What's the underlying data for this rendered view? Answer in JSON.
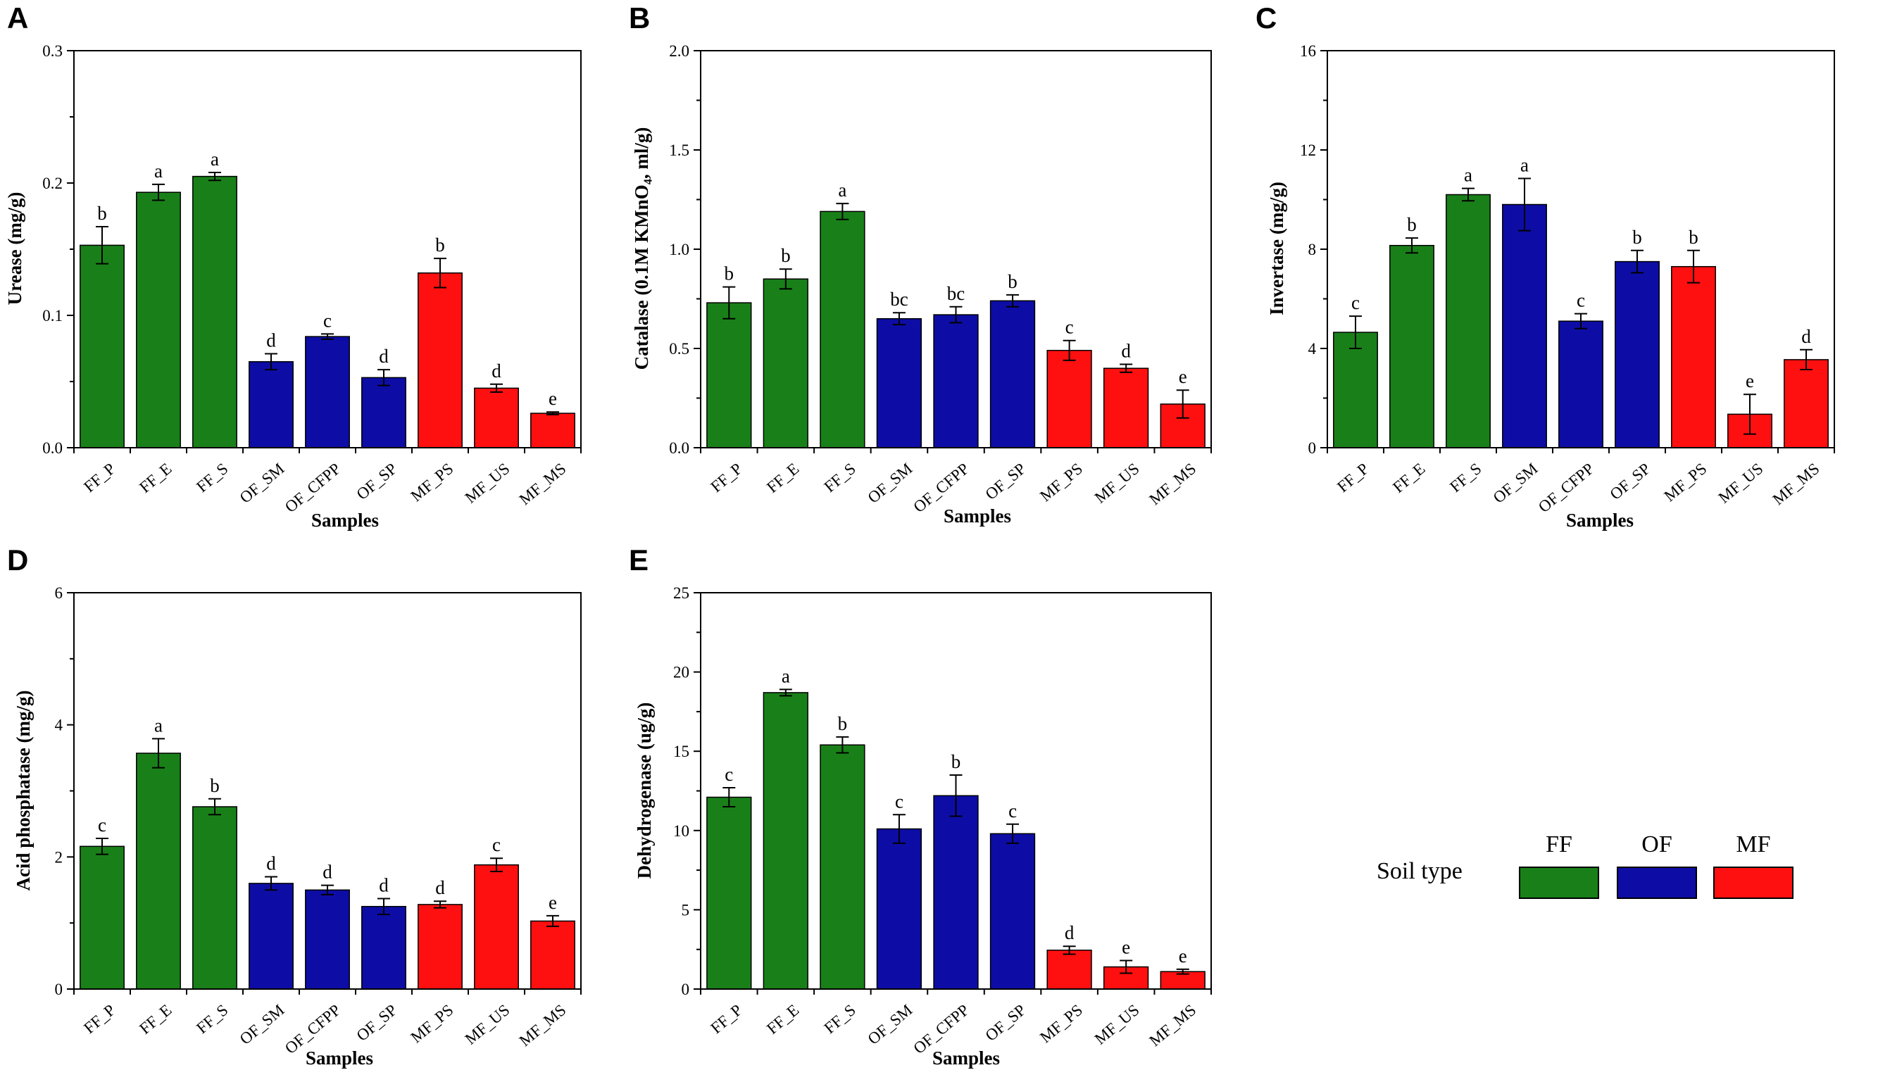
{
  "colors": {
    "FF": "#198019",
    "OF": "#0d0da6",
    "MF": "#ff1010"
  },
  "legend": {
    "title": "Soil type",
    "entries": [
      {
        "key": "FF",
        "label": "FF"
      },
      {
        "key": "OF",
        "label": "OF"
      },
      {
        "key": "MF",
        "label": "MF"
      }
    ]
  },
  "chart_data": [
    {
      "type": "bar",
      "panel": "A",
      "categories": [
        "FF_P",
        "FF_E",
        "FF_S",
        "OF_SM",
        "OF_CFPP",
        "OF_SP",
        "MF_PS",
        "MF_US",
        "MF_MS"
      ],
      "groups": [
        "FF",
        "FF",
        "FF",
        "OF",
        "OF",
        "OF",
        "MF",
        "MF",
        "MF"
      ],
      "values": [
        0.153,
        0.193,
        0.205,
        0.065,
        0.084,
        0.053,
        0.132,
        0.045,
        0.026
      ],
      "errors": [
        0.014,
        0.006,
        0.003,
        0.006,
        0.002,
        0.006,
        0.011,
        0.003,
        0.001
      ],
      "letters": [
        "b",
        "a",
        "a",
        "d",
        "c",
        "d",
        "b",
        "d",
        "e"
      ],
      "xlabel": "Samples",
      "ylabel": "Urease (mg/g)",
      "ylim": [
        0,
        0.3
      ],
      "yticks": [
        "0.0",
        "0.1",
        "0.2",
        "0.3"
      ],
      "ytick_values": [
        0,
        0.1,
        0.2,
        0.3
      ]
    },
    {
      "type": "bar",
      "panel": "B",
      "categories": [
        "FF_P",
        "FF_E",
        "FF_S",
        "OF_SM",
        "OF_CFPP",
        "OF_SP",
        "MF_PS",
        "MF_US",
        "MF_MS"
      ],
      "groups": [
        "FF",
        "FF",
        "FF",
        "OF",
        "OF",
        "OF",
        "MF",
        "MF",
        "MF"
      ],
      "values": [
        0.73,
        0.85,
        1.19,
        0.65,
        0.67,
        0.74,
        0.49,
        0.4,
        0.22
      ],
      "errors": [
        0.08,
        0.05,
        0.04,
        0.03,
        0.04,
        0.03,
        0.05,
        0.02,
        0.07
      ],
      "letters": [
        "b",
        "b",
        "a",
        "bc",
        "bc",
        "b",
        "c",
        "d",
        "e"
      ],
      "xlabel": "Samples",
      "ylabel": "Catalase (0.1M KMnO₄, ml/g)",
      "ylim": [
        0,
        2.0
      ],
      "yticks": [
        "0.0",
        "0.5",
        "1.0",
        "1.5",
        "2.0"
      ],
      "ytick_values": [
        0,
        0.5,
        1.0,
        1.5,
        2.0
      ]
    },
    {
      "type": "bar",
      "panel": "C",
      "categories": [
        "FF_P",
        "FF_E",
        "FF_S",
        "OF_SM",
        "OF_CFPP",
        "OF_SP",
        "MF_PS",
        "MF_US",
        "MF_MS"
      ],
      "groups": [
        "FF",
        "FF",
        "FF",
        "OF",
        "OF",
        "OF",
        "MF",
        "MF",
        "MF"
      ],
      "values": [
        4.65,
        8.15,
        10.2,
        9.8,
        5.1,
        7.5,
        7.3,
        1.35,
        3.55
      ],
      "errors": [
        0.65,
        0.3,
        0.25,
        1.05,
        0.3,
        0.45,
        0.65,
        0.8,
        0.4
      ],
      "letters": [
        "c",
        "b",
        "a",
        "a",
        "c",
        "b",
        "b",
        "e",
        "d"
      ],
      "xlabel": "Samples",
      "ylabel": "Invertase (mg/g)",
      "ylim": [
        0,
        16
      ],
      "yticks": [
        "0",
        "4",
        "8",
        "12",
        "16"
      ],
      "ytick_values": [
        0,
        4,
        8,
        12,
        16
      ]
    },
    {
      "type": "bar",
      "panel": "D",
      "categories": [
        "FF_P",
        "FF_E",
        "FF_S",
        "OF_SM",
        "OF_CFPP",
        "OF_SP",
        "MF_PS",
        "MF_US",
        "MF_MS"
      ],
      "groups": [
        "FF",
        "FF",
        "FF",
        "OF",
        "OF",
        "OF",
        "MF",
        "MF",
        "MF"
      ],
      "values": [
        2.16,
        3.57,
        2.76,
        1.6,
        1.5,
        1.25,
        1.28,
        1.88,
        1.03
      ],
      "errors": [
        0.12,
        0.22,
        0.12,
        0.1,
        0.07,
        0.12,
        0.05,
        0.1,
        0.08
      ],
      "letters": [
        "c",
        "a",
        "b",
        "d",
        "d",
        "d",
        "d",
        "c",
        "e"
      ],
      "xlabel": "Samples",
      "ylabel": "Acid phosphatase (mg/g)",
      "ylim": [
        0,
        6
      ],
      "yticks": [
        "0",
        "2",
        "4",
        "6"
      ],
      "ytick_values": [
        0,
        2,
        4,
        6
      ]
    },
    {
      "type": "bar",
      "panel": "E",
      "categories": [
        "FF_P",
        "FF_E",
        "FF_S",
        "OF_SM",
        "OF_CFPP",
        "OF_SP",
        "MF_PS",
        "MF_US",
        "MF_MS"
      ],
      "groups": [
        "FF",
        "FF",
        "FF",
        "OF",
        "OF",
        "OF",
        "MF",
        "MF",
        "MF"
      ],
      "values": [
        12.1,
        18.7,
        15.4,
        10.1,
        12.2,
        9.8,
        2.45,
        1.4,
        1.1
      ],
      "errors": [
        0.6,
        0.2,
        0.5,
        0.9,
        1.3,
        0.6,
        0.25,
        0.4,
        0.15
      ],
      "letters": [
        "c",
        "a",
        "b",
        "c",
        "b",
        "c",
        "d",
        "e",
        "e"
      ],
      "xlabel": "Samples",
      "ylabel": "Dehydrogenase (ug/g)",
      "ylim": [
        0,
        25
      ],
      "yticks": [
        "0",
        "5",
        "10",
        "15",
        "20",
        "25"
      ],
      "ytick_values": [
        0,
        5,
        10,
        15,
        20,
        25
      ]
    }
  ]
}
